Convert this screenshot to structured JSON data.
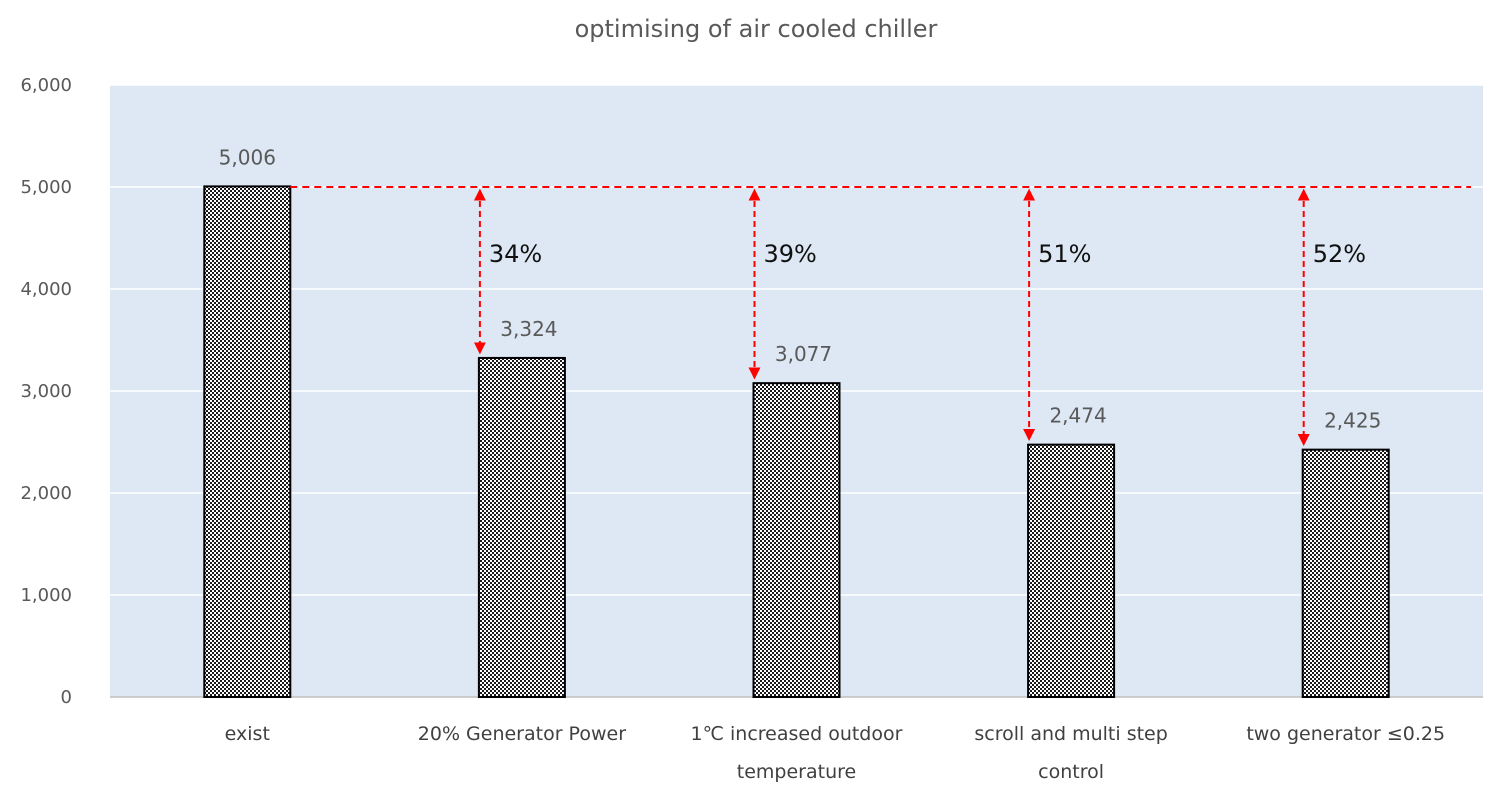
{
  "chart_data": {
    "type": "bar",
    "title": "optimising of air cooled chiller",
    "categories": [
      [
        "exist"
      ],
      [
        "20% Generator  Power"
      ],
      [
        "1℃ increased  outdoor",
        "temperature"
      ],
      [
        "scroll and multi step",
        "control"
      ],
      [
        "two generator  ≤0.25"
      ]
    ],
    "values": [
      5006,
      3324,
      3077,
      2474,
      2425
    ],
    "value_labels": [
      "5,006",
      "3,324",
      "3,077",
      "2,474",
      "2,425"
    ],
    "reductions": [
      "",
      "34%",
      "39%",
      "51%",
      "52%"
    ],
    "ylim": [
      0,
      6000
    ],
    "yticks": [
      0,
      1000,
      2000,
      3000,
      4000,
      5000,
      6000
    ],
    "ytick_labels": [
      "0",
      "1,000",
      "2,000",
      "3,000",
      "4,000",
      "5,000",
      "6,000"
    ],
    "reference_line": 5000,
    "grid": true,
    "colors": {
      "plot_background": "#dde8f4",
      "gridline": "#ffffff",
      "bar_fill_pattern": "checkered black/white",
      "bar_stroke": "#000000",
      "reference_line": "#ff0000",
      "arrow": "#ff0000"
    }
  }
}
